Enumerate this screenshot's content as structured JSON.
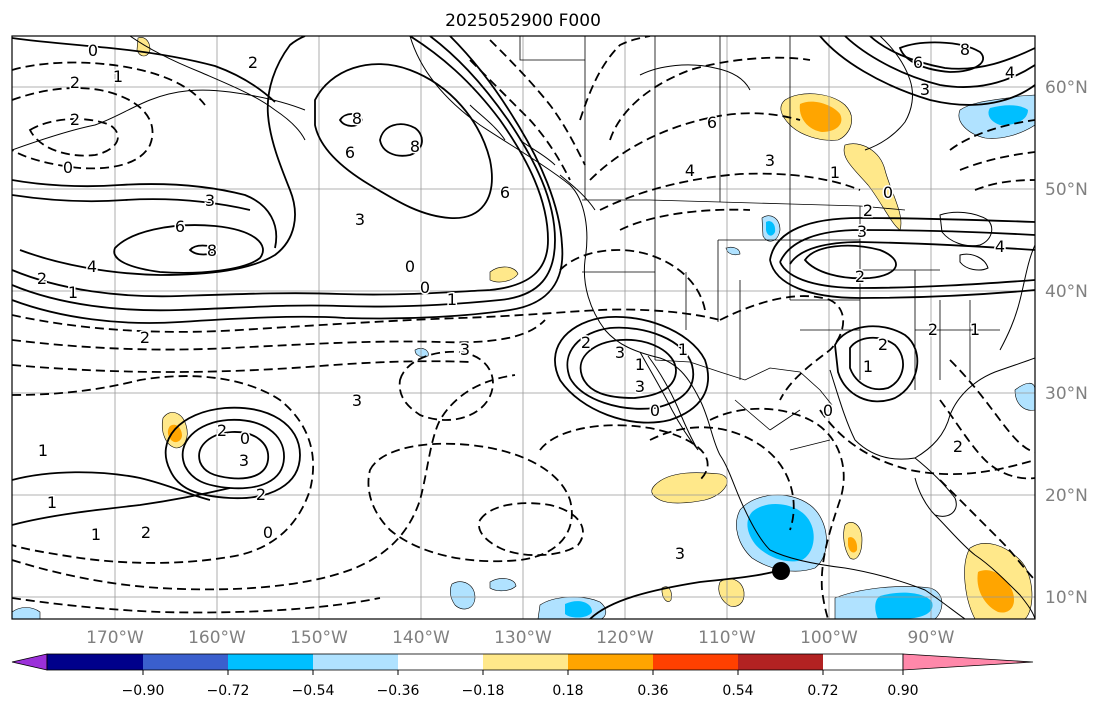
{
  "title": "2025052900 F000",
  "lon_labels": [
    "170°W",
    "160°W",
    "150°W",
    "140°W",
    "130°W",
    "120°W",
    "110°W",
    "100°W",
    "90°W"
  ],
  "lat_labels": [
    "60°N",
    "50°N",
    "40°N",
    "30°N",
    "20°N",
    "10°N"
  ],
  "colorbar": {
    "tick_labels": [
      "−0.90",
      "−0.72",
      "−0.54",
      "−0.36",
      "−0.18",
      "0.18",
      "0.36",
      "0.54",
      "0.72",
      "0.90"
    ],
    "colors": [
      "#9b30d9",
      "#00008b",
      "#3a5fcd",
      "#00bfff",
      "#b0e2ff",
      "#ffffff",
      "#ffe88a",
      "#ffa500",
      "#ff4000",
      "#b22222",
      "#ff88aa"
    ]
  },
  "contour_labels": [
    "0",
    "1",
    "2",
    "2",
    "0",
    "2",
    "3",
    "6",
    "8",
    "4",
    "2",
    "1",
    "0",
    "1",
    "2",
    "3",
    "6",
    "8",
    "8",
    "6",
    "3",
    "0",
    "0",
    "1",
    "2",
    "3",
    "4",
    "6",
    "3",
    "2",
    "0",
    "1",
    "2",
    "3",
    "2",
    "1",
    "0",
    "1",
    "3",
    "2",
    "0",
    "1",
    "2",
    "1",
    "0",
    "2",
    "3",
    "2",
    "6",
    "8",
    "4",
    "3",
    "4",
    "1",
    "2",
    "1",
    "3",
    "3"
  ],
  "marker": "filled-circle"
}
